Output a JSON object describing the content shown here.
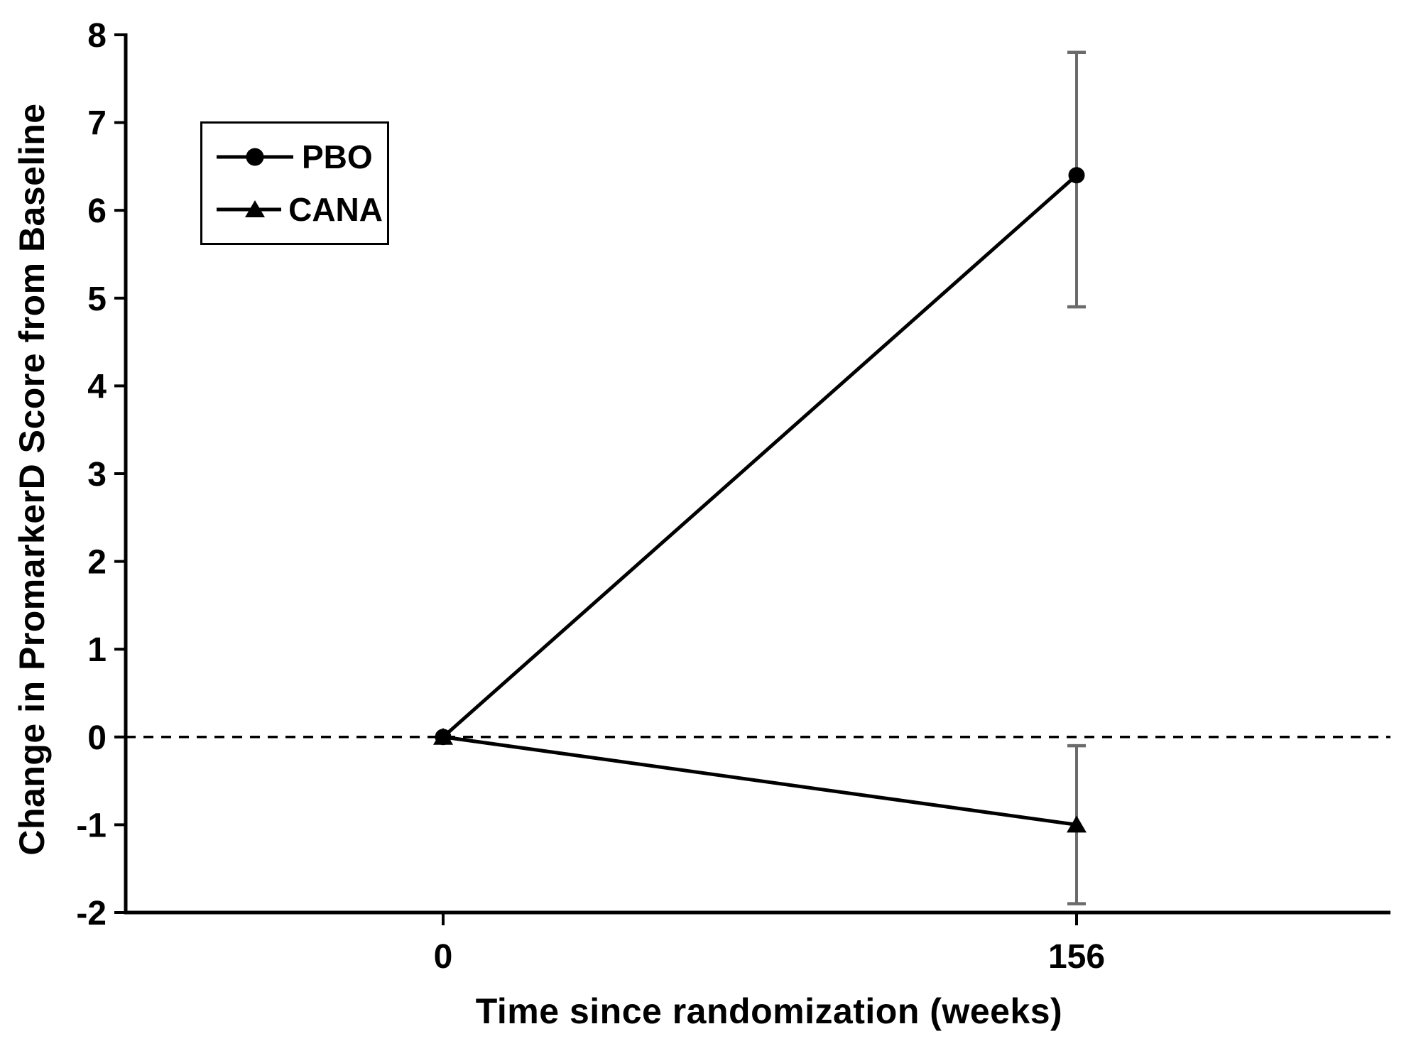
{
  "figure": {
    "background_color": "#ffffff",
    "line_color": "#000000",
    "error_bar_color": "#6b6b6b"
  },
  "chart_data": {
    "type": "line",
    "title": "",
    "xlabel": "Time since randomization (weeks)",
    "ylabel": "Change in PromarkerD Score from Baseline",
    "x": [
      0,
      156
    ],
    "xtick_labels": [
      "0",
      "156"
    ],
    "yticks": [
      -2,
      -1,
      0,
      1,
      2,
      3,
      4,
      5,
      6,
      7,
      8
    ],
    "ylim": [
      -2,
      8
    ],
    "grid": false,
    "zero_reference_line": {
      "y": 0,
      "style": "dashed"
    },
    "legend": {
      "position": "upper-left-inside",
      "entries": [
        "PBO",
        "CANA"
      ]
    },
    "series": [
      {
        "name": "PBO",
        "marker": "filled-circle",
        "color": "#000000",
        "x": [
          0,
          156
        ],
        "values": [
          0.0,
          6.4
        ],
        "error_low": [
          null,
          4.9
        ],
        "error_high": [
          null,
          7.8
        ]
      },
      {
        "name": "CANA",
        "marker": "filled-triangle",
        "color": "#000000",
        "x": [
          0,
          156
        ],
        "values": [
          0.0,
          -1.0
        ],
        "error_low": [
          null,
          -1.9
        ],
        "error_high": [
          null,
          -0.1
        ]
      }
    ]
  }
}
